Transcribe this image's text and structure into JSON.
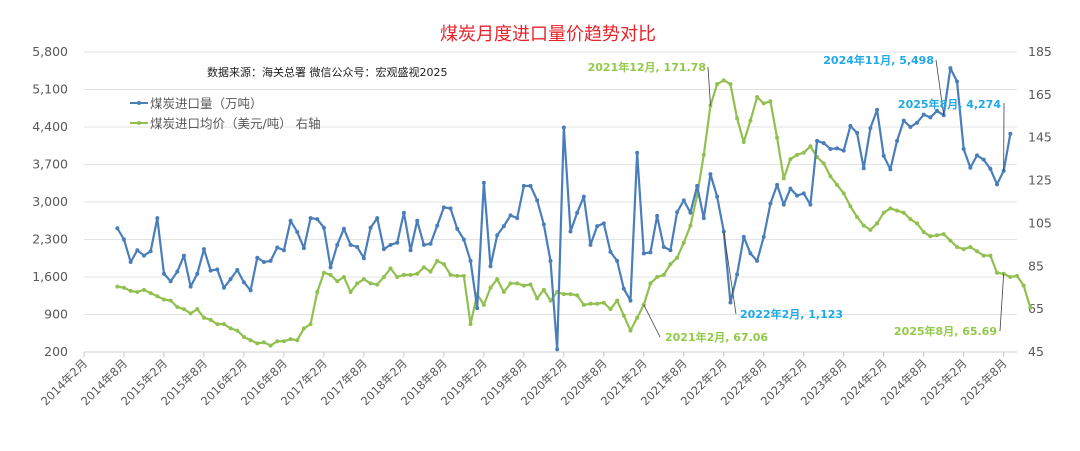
{
  "title": "煤炭月度进口量价趋势对比",
  "source_note": "数据来源：海关总署  微信公众号：宏观盛视2025",
  "colors": {
    "volume": "#4a7ebb",
    "price": "#92c050",
    "title": "#e8232a",
    "ann_blue": "#1fa8e8",
    "ann_green": "#92c94a"
  },
  "legend": [
    {
      "label": "煤炭进口量（万吨）",
      "color": "#4a7ebb"
    },
    {
      "label": "煤炭进口均价（美元/吨） 右轴",
      "color": "#92c050"
    }
  ],
  "chart_data": {
    "type": "line",
    "title": "煤炭月度进口量价趋势对比",
    "subtitle": "数据来源：海关总署  微信公众号：宏观盛视2025",
    "y_left": {
      "label": "煤炭进口量（万吨）",
      "ticks": [
        200,
        900,
        1600,
        2300,
        3000,
        3700,
        4400,
        5100,
        5800
      ],
      "tick_labels": [
        "200",
        "900",
        "1,600",
        "2,300",
        "3,000",
        "3,700",
        "4,400",
        "5,100",
        "5,800"
      ],
      "range": [
        200,
        5800
      ]
    },
    "y_right": {
      "label": "煤炭进口均价（美元/吨）",
      "ticks": [
        45,
        65,
        85,
        105,
        125,
        145,
        165,
        185
      ],
      "range": [
        45,
        185
      ]
    },
    "x_tick_labels": [
      "2014年2月",
      "2014年8月",
      "2015年2月",
      "2015年8月",
      "2016年2月",
      "2016年8月",
      "2017年2月",
      "2017年8月",
      "2018年2月",
      "2018年8月",
      "2019年2月",
      "2019年8月",
      "2020年2月",
      "2020年8月",
      "2021年2月",
      "2021年8月",
      "2022年2月",
      "2022年8月",
      "2023年2月",
      "2023年8月",
      "2024年2月",
      "2024年8月",
      "2025年2月",
      "2025年8月"
    ],
    "x_start": "2014年7月",
    "x_end": "2025年8月",
    "grid": true,
    "legend_position": "upper-left",
    "series": [
      {
        "name": "煤炭进口量（万吨）",
        "axis": "left",
        "values": [
          2510,
          2300,
          1880,
          2100,
          2000,
          2080,
          2700,
          1660,
          1520,
          1700,
          2000,
          1420,
          1660,
          2120,
          1720,
          1740,
          1400,
          1560,
          1730,
          1500,
          1350,
          1960,
          1880,
          1900,
          2150,
          2100,
          2650,
          2440,
          2140,
          2700,
          2680,
          2520,
          1780,
          2200,
          2500,
          2200,
          2160,
          1950,
          2520,
          2700,
          2120,
          2200,
          2240,
          2800,
          2100,
          2650,
          2200,
          2220,
          2560,
          2900,
          2880,
          2500,
          2300,
          1900,
          1020,
          3360,
          1800,
          2380,
          2550,
          2750,
          2700,
          3300,
          3300,
          3030,
          2580,
          1900,
          250,
          4390,
          2450,
          2800,
          3100,
          2200,
          2550,
          2600,
          2070,
          1900,
          1380,
          1160,
          3920,
          2040,
          2060,
          2740,
          2160,
          2100,
          2810,
          3030,
          2800,
          3300,
          2700,
          3520,
          3100,
          2450,
          1123,
          1650,
          2350,
          2040,
          1900,
          2350,
          2970,
          3320,
          2950,
          3250,
          3120,
          3160,
          2950,
          4140,
          4100,
          3990,
          4000,
          3960,
          4420,
          4290,
          3630,
          4380,
          4720,
          3860,
          3610,
          4140,
          4520,
          4400,
          4480,
          4630,
          4580,
          4700,
          4620,
          5498,
          5250,
          3990,
          3640,
          3870,
          3790,
          3620,
          3330,
          3580,
          4274
        ]
      },
      {
        "name": "煤炭进口均价（美元/吨） 右轴",
        "axis": "right",
        "values": [
          75.5,
          75,
          73.5,
          73,
          74,
          72.5,
          71,
          69.5,
          69,
          66,
          65,
          63,
          65,
          61,
          60,
          58,
          58,
          56,
          55,
          52,
          50.5,
          49,
          49.5,
          48,
          50,
          50,
          51,
          50.5,
          56,
          58,
          73,
          82,
          81,
          78,
          80,
          73,
          77,
          79,
          77,
          76.5,
          80,
          84,
          80,
          81,
          81,
          81.5,
          84.5,
          82.5,
          87.5,
          86,
          81,
          80.5,
          80.5,
          58,
          72,
          67,
          75,
          79,
          73,
          77,
          77,
          76,
          76.5,
          70,
          74,
          69,
          73,
          72,
          72,
          71.5,
          67,
          67.5,
          67.5,
          68,
          65,
          69,
          62,
          55,
          61,
          67.06,
          77,
          80,
          81,
          86,
          89,
          96,
          104,
          118,
          137,
          160,
          170,
          171.78,
          170,
          154,
          143,
          153,
          164,
          161,
          162,
          145,
          126,
          135,
          137,
          138,
          141,
          136,
          133,
          127,
          123,
          119,
          113,
          108,
          104,
          102,
          105,
          110,
          112,
          111,
          110,
          107,
          105,
          101,
          99,
          99.5,
          100,
          97,
          94,
          93,
          94,
          92,
          90,
          90,
          82,
          81.5,
          80,
          80.5,
          76,
          65.69
        ]
      }
    ],
    "annotations": [
      {
        "text": "2021年12月, 171.78",
        "series": "price",
        "color": "#92c94a"
      },
      {
        "text": "2021年2月, 67.06",
        "series": "price",
        "color": "#92c94a"
      },
      {
        "text": "2022年2月, 1,123",
        "series": "volume",
        "color": "#1fa8e8"
      },
      {
        "text": "2024年11月, 5,498",
        "series": "volume",
        "color": "#1fa8e8"
      },
      {
        "text": "2025年8月, 4,274",
        "series": "volume",
        "color": "#1fa8e8"
      },
      {
        "text": "2025年8月, 65.69",
        "series": "price",
        "color": "#92c94a"
      }
    ]
  }
}
